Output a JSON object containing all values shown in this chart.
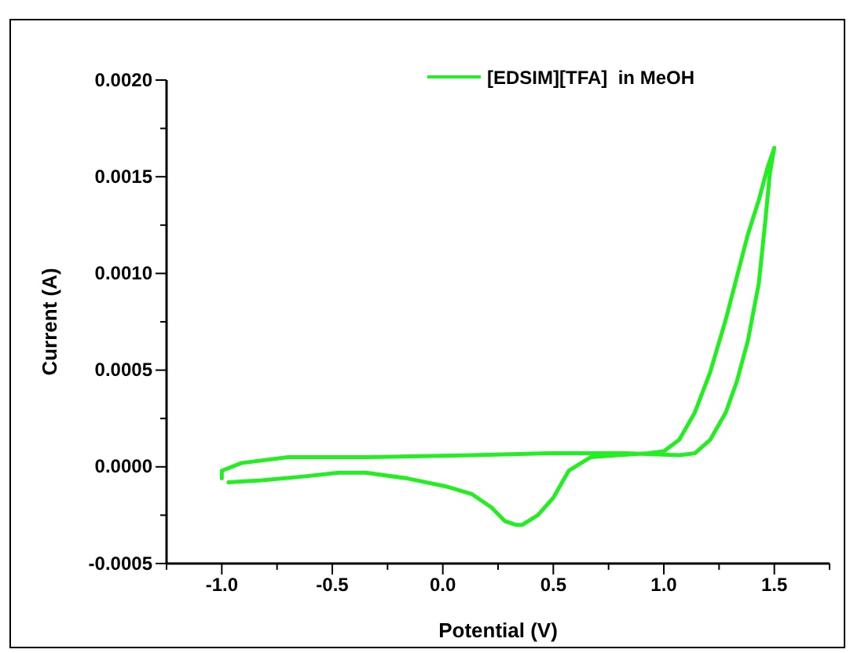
{
  "chart_data": {
    "type": "line",
    "xlabel": "Potential (V)",
    "ylabel": "Current (A)",
    "xlim": [
      -1.25,
      1.75
    ],
    "xticks": [
      {
        "value": -1.25,
        "label": null
      },
      {
        "value": -1.0,
        "label": "-1.0"
      },
      {
        "value": -0.75,
        "label": null
      },
      {
        "value": -0.5,
        "label": "-0.5"
      },
      {
        "value": -0.25,
        "label": null
      },
      {
        "value": 0,
        "label": "0.0"
      },
      {
        "value": 0.25,
        "label": null
      },
      {
        "value": 0.5,
        "label": "0.5"
      },
      {
        "value": 0.75,
        "label": null
      },
      {
        "value": 1.0,
        "label": "1.0"
      },
      {
        "value": 1.25,
        "label": null
      },
      {
        "value": 1.5,
        "label": "1.5"
      },
      {
        "value": 1.75,
        "label": null
      }
    ],
    "ylim": [
      -0.0005,
      0.002
    ],
    "yticks": [
      {
        "value": -0.0005,
        "label": "-0.0005"
      },
      {
        "value": -0.00025,
        "label": null
      },
      {
        "value": 0,
        "label": "0.0000"
      },
      {
        "value": 0.00025,
        "label": null
      },
      {
        "value": 0.0005,
        "label": "0.0005"
      },
      {
        "value": 0.00075,
        "label": null
      },
      {
        "value": 0.001,
        "label": "0.0010"
      },
      {
        "value": 0.00125,
        "label": null
      },
      {
        "value": 0.0015,
        "label": "0.0015"
      },
      {
        "value": 0.00175,
        "label": null
      },
      {
        "value": 0.002,
        "label": "0.0020"
      }
    ],
    "grid": false,
    "legend": "top right",
    "marker": "none",
    "line_style": "solid",
    "series": [
      {
        "name": "[EDSIM][TFA]  in MeOH",
        "color": "#22ee22",
        "x": [
          -1.0,
          -1.0,
          -0.91,
          -0.7,
          -0.35,
          0.13,
          0.48,
          0.83,
          1.07,
          1.14,
          1.21,
          1.28,
          1.33,
          1.38,
          1.43,
          1.46,
          1.48,
          1.5,
          1.47,
          1.43,
          1.38,
          1.33,
          1.28,
          1.21,
          1.14,
          1.07,
          1.0,
          0.93,
          0.79,
          0.67,
          0.57,
          0.5,
          0.43,
          0.36,
          0.33,
          0.28,
          0.22,
          0.13,
          0.01,
          -0.16,
          -0.35,
          -0.47,
          -0.63,
          -0.82,
          -0.97
        ],
        "values": [
          -6e-05,
          -2e-05,
          2e-05,
          5e-05,
          5e-05,
          6e-05,
          7e-05,
          7e-05,
          6e-05,
          7e-05,
          0.00014,
          0.00028,
          0.00044,
          0.00065,
          0.00095,
          0.00128,
          0.00152,
          0.00165,
          0.00155,
          0.00138,
          0.0012,
          0.00098,
          0.00076,
          0.00049,
          0.00028,
          0.00014,
          8e-05,
          7e-05,
          6e-05,
          5e-05,
          -2e-05,
          -0.00016,
          -0.00025,
          -0.0003,
          -0.0003,
          -0.00028,
          -0.00021,
          -0.00014,
          -0.0001,
          -6e-05,
          -3e-05,
          -3e-05,
          -5e-05,
          -7e-05,
          -8e-05
        ]
      }
    ]
  }
}
